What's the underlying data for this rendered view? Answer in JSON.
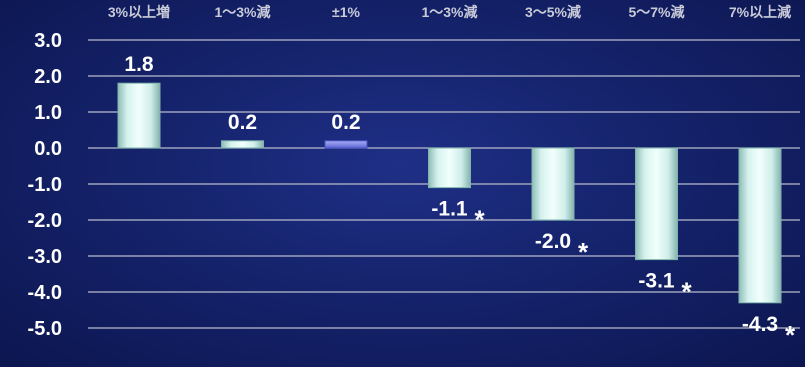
{
  "chart_data": {
    "type": "bar",
    "categories": [
      "3%以上増",
      "1～3%減",
      "±1%",
      "1～3%減",
      "3～5%減",
      "5～7%減",
      "7%以上減"
    ],
    "values": [
      1.8,
      0.2,
      0.2,
      -1.1,
      -2.0,
      -3.1,
      -4.3
    ],
    "data_labels": [
      "1.8",
      "0.2",
      "0.2",
      "-1.1",
      "-2.0",
      "-3.1",
      "-4.3"
    ],
    "marked": [
      false,
      false,
      false,
      true,
      true,
      true,
      true
    ],
    "marker_symbol": "*",
    "y_ticks": [
      "3.0",
      "2.0",
      "1.0",
      "0.0",
      "-1.0",
      "-2.0",
      "-3.0",
      "-4.0",
      "-5.0"
    ],
    "ylim": [
      -5,
      3
    ],
    "grid": true,
    "highlight_index": 2,
    "colors": {
      "bar": "#c8ece6",
      "bar_edge": "#7fb3ad",
      "highlight": "#7f86e8",
      "grid": "#b8bccb",
      "background": "#15236c"
    }
  }
}
